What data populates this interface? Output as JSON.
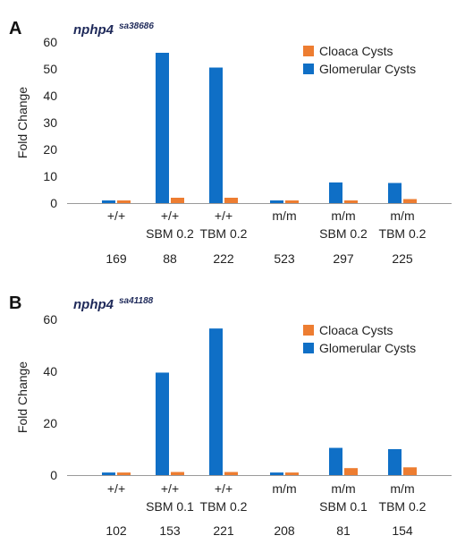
{
  "chart_data": [
    {
      "panel": "A",
      "type": "bar",
      "gene": "nphp4",
      "allele": "sa38686",
      "ylabel": "Fold Change",
      "ylim": [
        0,
        60
      ],
      "yticks": [
        0,
        10,
        20,
        30,
        40,
        50,
        60
      ],
      "categories": [
        [
          "+/+"
        ],
        [
          "+/+",
          "SBM 0.2"
        ],
        [
          "+/+",
          "TBM 0.2"
        ],
        [
          "m/m"
        ],
        [
          "m/m",
          "SBM 0.2"
        ],
        [
          "m/m",
          "TBM 0.2"
        ]
      ],
      "counts": [
        "169",
        "88",
        "222",
        "523",
        "297",
        "225"
      ],
      "legend_position": "top-right",
      "series": [
        {
          "name": "Glomerular Cysts",
          "color": "#0f6fc6",
          "values": [
            1,
            56,
            50.5,
            1,
            7.7,
            7.5
          ]
        },
        {
          "name": "Cloaca Cysts",
          "color": "#ed7d31",
          "values": [
            1,
            2,
            2,
            1,
            1,
            1.5
          ]
        }
      ],
      "legend_order": [
        "Cloaca Cysts",
        "Glomerular Cysts"
      ]
    },
    {
      "panel": "B",
      "type": "bar",
      "gene": "nphp4",
      "allele": "sa41188",
      "ylabel": "Fold Change",
      "ylim": [
        0,
        60
      ],
      "yticks": [
        0,
        20,
        40,
        60
      ],
      "categories": [
        [
          "+/+"
        ],
        [
          "+/+",
          "SBM 0.1"
        ],
        [
          "+/+",
          "TBM 0.2"
        ],
        [
          "m/m"
        ],
        [
          "m/m",
          "SBM 0.1"
        ],
        [
          "m/m",
          "TBM 0.2"
        ]
      ],
      "counts": [
        "102",
        "153",
        "221",
        "208",
        "81",
        "154"
      ],
      "legend_position": "top-right",
      "series": [
        {
          "name": "Glomerular Cysts",
          "color": "#0f6fc6",
          "values": [
            1,
            39.5,
            56.5,
            1,
            10.5,
            10
          ]
        },
        {
          "name": "Cloaca Cysts",
          "color": "#ed7d31",
          "values": [
            1,
            1.2,
            1.2,
            1,
            2.7,
            3
          ]
        }
      ],
      "legend_order": [
        "Cloaca Cysts",
        "Glomerular Cysts"
      ]
    }
  ]
}
